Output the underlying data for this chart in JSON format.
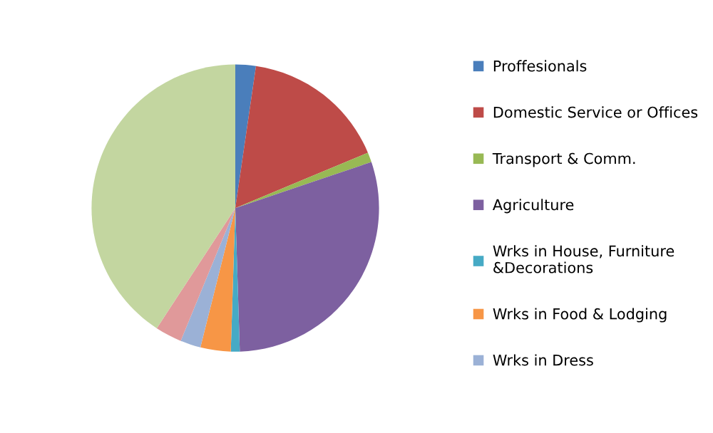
{
  "chart_data": {
    "type": "pie",
    "categories": [
      "Proffesionals",
      "Domestic Service or Offices",
      "Transport & Comm.",
      "Agriculture",
      "Wrks in House, Furniture\n&Decorations",
      "Wrks in Food & Lodging",
      "Wrks in Dress",
      null,
      null
    ],
    "values": [
      2.3,
      16.4,
      1.1,
      29.7,
      1.0,
      3.4,
      2.3,
      3.0,
      40.8
    ],
    "colors": [
      "#4a7ebb",
      "#be4b48",
      "#98b954",
      "#7d60a0",
      "#46aac5",
      "#f79646",
      "#9bb1d6",
      "#e0999a",
      "#c3d6a0"
    ],
    "legend": "right"
  }
}
